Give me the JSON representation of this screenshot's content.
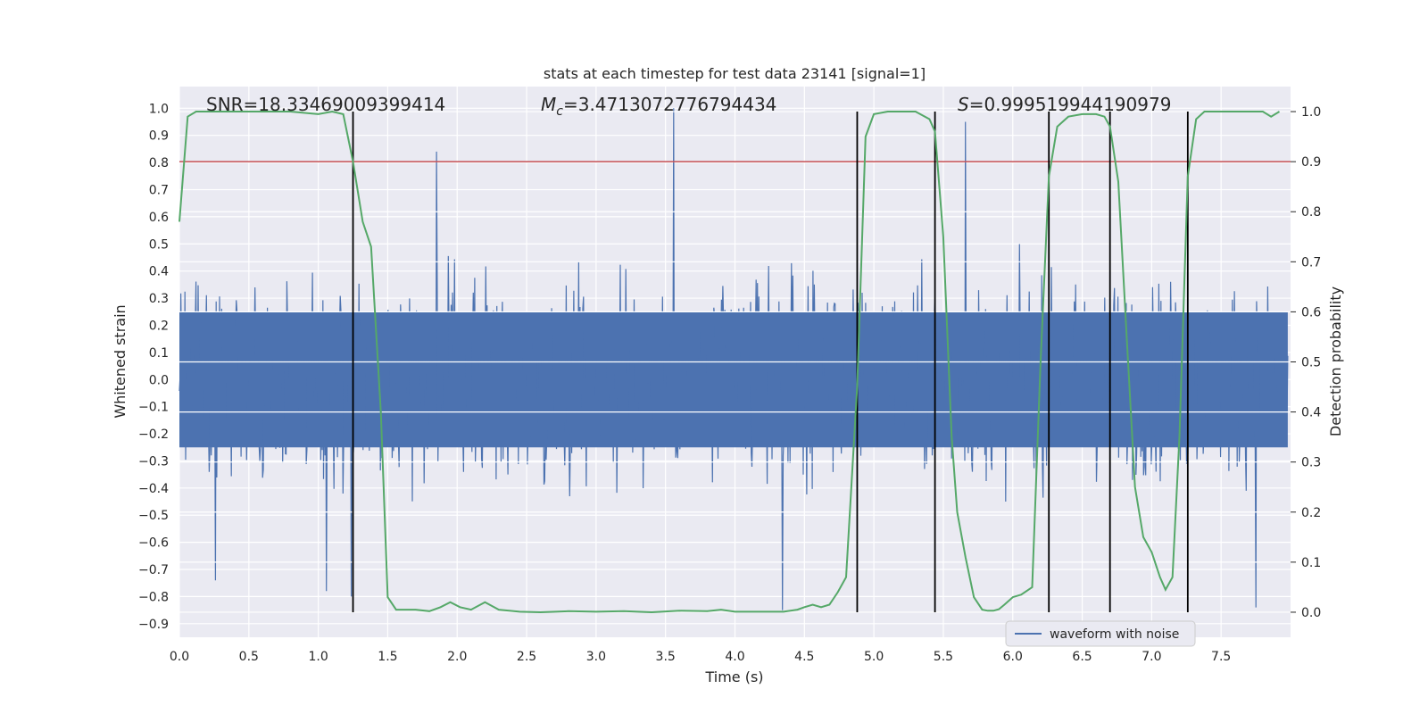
{
  "chart_data": {
    "type": "line",
    "title": "stats at each timestep for test data 23141 [signal=1]",
    "xlabel": "Time (s)",
    "ylabel_left": "Whitened strain",
    "ylabel_right": "Detection probability",
    "xlim": [
      0.0,
      8.0
    ],
    "ylim_left": [
      -0.95,
      1.08
    ],
    "ylim_right": [
      -0.05,
      1.05
    ],
    "x_ticks": [
      "0.0",
      "0.5",
      "1.0",
      "1.5",
      "2.0",
      "2.5",
      "3.0",
      "3.5",
      "4.0",
      "4.5",
      "5.0",
      "5.5",
      "6.0",
      "6.5",
      "7.0",
      "7.5"
    ],
    "y_ticks_left": [
      "-0.9",
      "-0.8",
      "-0.7",
      "-0.6",
      "-0.5",
      "-0.4",
      "-0.3",
      "-0.2",
      "-0.1",
      "0.0",
      "0.1",
      "0.2",
      "0.3",
      "0.4",
      "0.5",
      "0.6",
      "0.7",
      "0.8",
      "0.9",
      "1.0"
    ],
    "y_ticks_right": [
      "0.0",
      "0.1",
      "0.2",
      "0.3",
      "0.4",
      "0.5",
      "0.6",
      "0.7",
      "0.8",
      "0.9",
      "1.0"
    ],
    "annotations": {
      "snr": "SNR=18.33469009399414",
      "mc_prefix": "M",
      "mc_sub": "c",
      "mc_value": "=3.4713072776794434",
      "s_prefix": "S",
      "s_value": "=0.999519944190979"
    },
    "legend": {
      "label": "waveform with noise",
      "placement": "bottom-right"
    },
    "threshold_right": 0.9,
    "vertical_lines_x": [
      1.25,
      4.88,
      5.44,
      6.26,
      6.7,
      7.26
    ],
    "waveform": {
      "name": "waveform with noise",
      "color": "#4c72b0",
      "samples": 1600,
      "spikes": [
        {
          "x": 3.56,
          "y": 1.0
        },
        {
          "x": 1.85,
          "y": 0.84
        },
        {
          "x": 5.66,
          "y": 0.95
        },
        {
          "x": 4.34,
          "y": -0.85
        },
        {
          "x": 0.26,
          "y": -0.74
        },
        {
          "x": 7.75,
          "y": -0.84
        },
        {
          "x": 1.24,
          "y": -0.8
        },
        {
          "x": 1.06,
          "y": -0.78
        }
      ]
    },
    "probability": {
      "name": "detection probability",
      "color": "#55a868",
      "x": [
        0.0,
        0.06,
        0.12,
        0.2,
        0.4,
        0.6,
        0.8,
        1.0,
        1.1,
        1.18,
        1.25,
        1.32,
        1.38,
        1.45,
        1.5,
        1.56,
        1.7,
        1.8,
        1.88,
        1.95,
        2.02,
        2.1,
        2.2,
        2.3,
        2.45,
        2.6,
        2.8,
        3.0,
        3.2,
        3.4,
        3.6,
        3.8,
        3.9,
        4.0,
        4.2,
        4.35,
        4.45,
        4.5,
        4.56,
        4.62,
        4.68,
        4.74,
        4.8,
        4.88,
        4.94,
        5.0,
        5.1,
        5.3,
        5.4,
        5.44,
        5.5,
        5.56,
        5.6,
        5.66,
        5.72,
        5.78,
        5.82,
        5.86,
        5.9,
        5.94,
        6.0,
        6.06,
        6.14,
        6.2,
        6.26,
        6.32,
        6.4,
        6.5,
        6.6,
        6.66,
        6.7,
        6.76,
        6.82,
        6.88,
        6.94,
        7.0,
        7.06,
        7.1,
        7.15,
        7.2,
        7.26,
        7.32,
        7.38,
        7.5,
        7.7,
        7.8,
        7.86,
        7.92
      ],
      "y": [
        0.78,
        0.99,
        1.0,
        1.0,
        1.0,
        1.0,
        1.0,
        0.995,
        1.0,
        0.995,
        0.9,
        0.78,
        0.73,
        0.4,
        0.03,
        0.005,
        0.005,
        0.002,
        0.01,
        0.02,
        0.01,
        0.005,
        0.02,
        0.005,
        0.001,
        0.0,
        0.002,
        0.001,
        0.002,
        0.0,
        0.003,
        0.002,
        0.005,
        0.001,
        0.001,
        0.001,
        0.005,
        0.01,
        0.015,
        0.01,
        0.015,
        0.04,
        0.07,
        0.45,
        0.95,
        0.995,
        1.0,
        1.0,
        0.985,
        0.96,
        0.75,
        0.35,
        0.2,
        0.11,
        0.03,
        0.005,
        0.003,
        0.003,
        0.006,
        0.015,
        0.03,
        0.035,
        0.05,
        0.5,
        0.87,
        0.97,
        0.99,
        0.995,
        0.995,
        0.99,
        0.97,
        0.86,
        0.55,
        0.25,
        0.15,
        0.12,
        0.07,
        0.045,
        0.07,
        0.35,
        0.87,
        0.985,
        1.0,
        1.0,
        1.0,
        1.0,
        0.99,
        1.0
      ]
    }
  }
}
